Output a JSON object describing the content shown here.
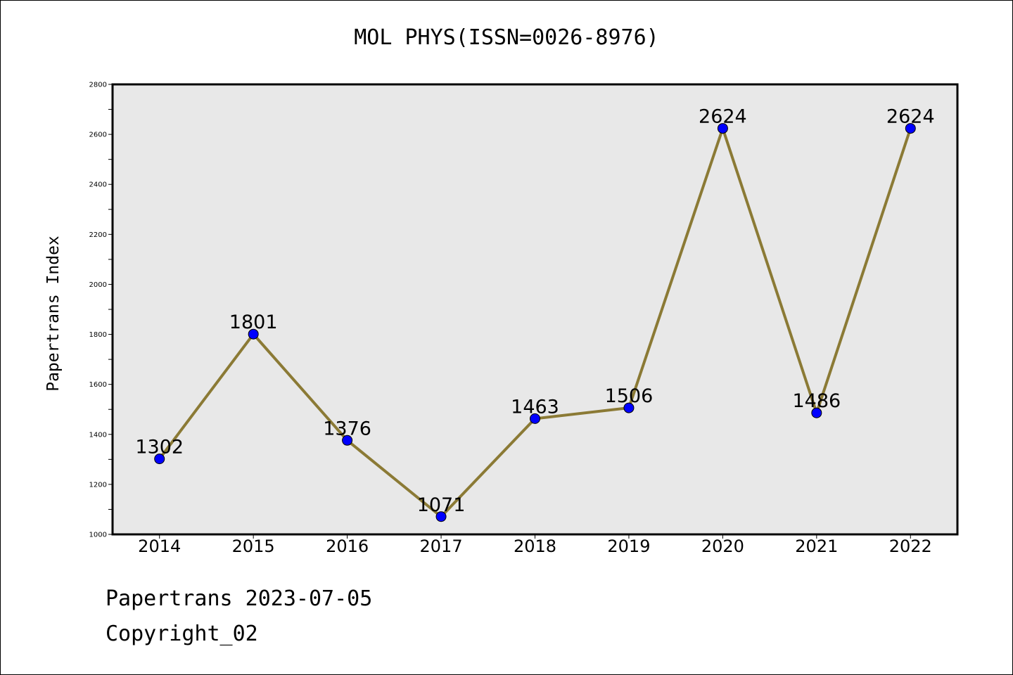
{
  "chart_data": {
    "type": "line",
    "title": "MOL PHYS(ISSN=0026-8976)",
    "ylabel": "Papertrans Index",
    "xlabel": "",
    "categories": [
      "2014",
      "2015",
      "2016",
      "2017",
      "2018",
      "2019",
      "2020",
      "2021",
      "2022"
    ],
    "series": [
      {
        "values": [
          1302,
          1801,
          1376,
          1071,
          1463,
          1506,
          2624,
          1486,
          2624
        ]
      }
    ],
    "ylim": [
      1000,
      2800
    ],
    "yticks": [
      1000,
      1200,
      1400,
      1600,
      1800,
      2000,
      2200,
      2400,
      2600,
      2800
    ],
    "grid": false,
    "legend": "none",
    "colors": {
      "line": "#8b7a35",
      "marker": "#0000ff",
      "plot_background": "#e8e8e8"
    }
  },
  "footer": {
    "line1": "Papertrans 2023-07-05",
    "line2": "Copyright_02"
  }
}
